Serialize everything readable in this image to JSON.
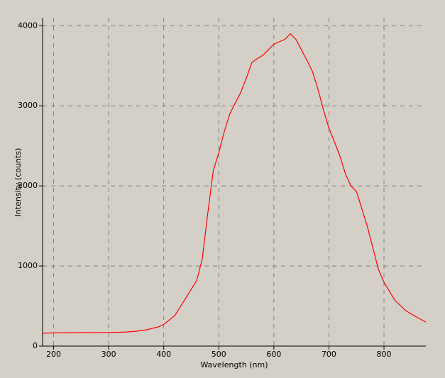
{
  "chart_data": {
    "type": "line",
    "x_label": "Wavelength (nm)",
    "y_label": "Intensity (counts)",
    "x": [
      180,
      200,
      250,
      300,
      330,
      350,
      370,
      390,
      400,
      420,
      440,
      460,
      470,
      480,
      490,
      500,
      510,
      520,
      530,
      540,
      550,
      560,
      570,
      580,
      590,
      600,
      610,
      620,
      630,
      640,
      650,
      660,
      670,
      680,
      690,
      700,
      710,
      720,
      730,
      740,
      750,
      760,
      770,
      780,
      790,
      800,
      820,
      840,
      860,
      876
    ],
    "series": [
      {
        "name": "Intensity",
        "color": "#ff0000",
        "values": [
          160,
          165,
          168,
          170,
          175,
          185,
          205,
          240,
          270,
          380,
          600,
          820,
          1090,
          1660,
          2190,
          2415,
          2680,
          2900,
          3035,
          3170,
          3345,
          3540,
          3590,
          3630,
          3700,
          3770,
          3800,
          3830,
          3900,
          3830,
          3700,
          3570,
          3430,
          3210,
          2950,
          2720,
          2550,
          2370,
          2150,
          2000,
          1930,
          1710,
          1487,
          1221,
          956,
          796,
          570,
          440,
          360,
          300
        ]
      }
    ],
    "xlim": [
      180,
      876
    ],
    "xticks": [
      200,
      300,
      400,
      500,
      600,
      700,
      800
    ],
    "ylim": [
      0,
      4100
    ],
    "yticks": [
      0,
      1000,
      2000,
      3000,
      4000
    ],
    "grid": true
  }
}
